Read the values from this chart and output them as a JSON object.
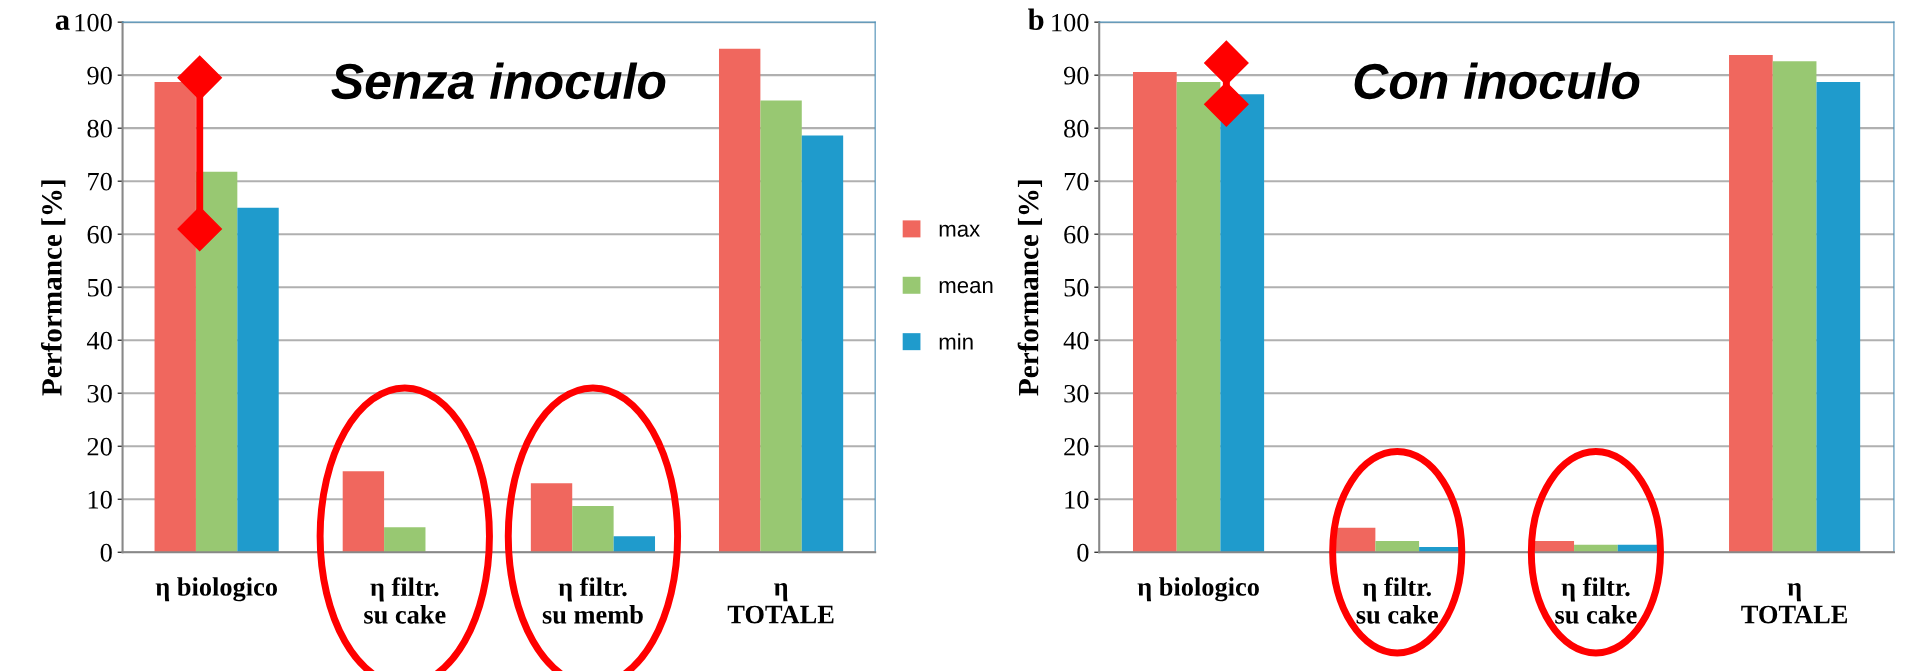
{
  "chart_data": [
    {
      "type": "bar",
      "title": "a",
      "ylabel": "Performance [%]",
      "annotations": [
        "Senza inoculo"
      ],
      "categories": [
        "η biologico",
        "η filtr.\nsu cake",
        "η filtr.\nsu memb",
        "η\nTOTALE"
      ],
      "series": [
        {
          "name": "max",
          "color": "#f0675e",
          "values": [
            88.7,
            15.3,
            13,
            95
          ]
        },
        {
          "name": "mean",
          "color": "#98c872",
          "values": [
            71.8,
            4.7,
            8.7,
            85.2
          ]
        },
        {
          "name": "min",
          "color": "#1f9bcc",
          "values": [
            65,
            0,
            3,
            78.6
          ]
        }
      ],
      "ylim": [
        0,
        100
      ],
      "yticks": [
        0,
        10,
        20,
        30,
        40,
        50,
        60,
        70,
        80,
        90,
        100
      ],
      "grid": "y",
      "legend": "right"
    },
    {
      "type": "bar",
      "title": "b",
      "ylabel": "Performance [%]",
      "annotations": [
        "Con inoculo"
      ],
      "categories": [
        "η biologico",
        "η filtr.\nsu cake",
        "η filtr.\nsu cake",
        "η\nTOTALE"
      ],
      "series": [
        {
          "color": "#f0675e",
          "values": [
            90.6,
            4.6,
            2.1,
            93.8
          ]
        },
        {
          "color": "#98c872",
          "values": [
            88.7,
            2.1,
            1.4,
            92.6
          ]
        },
        {
          "color": "#1f9bcc",
          "values": [
            86.4,
            1.0,
            1.4,
            88.7
          ]
        }
      ],
      "ylim": [
        0,
        100
      ],
      "yticks": [
        0,
        10,
        20,
        30,
        40,
        50,
        60,
        70,
        80,
        90,
        100
      ],
      "grid": "y"
    }
  ]
}
